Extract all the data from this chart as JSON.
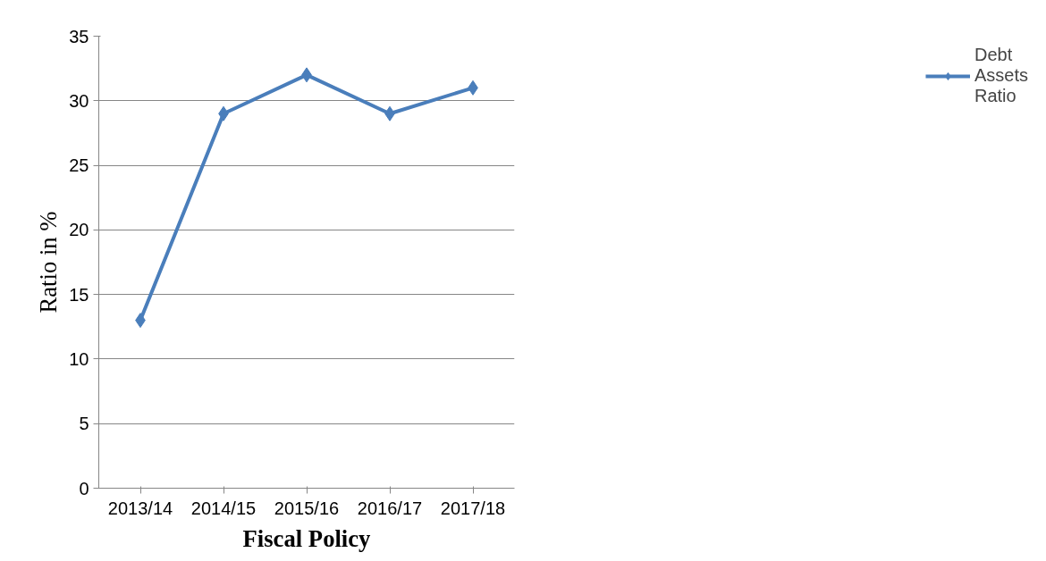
{
  "chart_data": {
    "type": "line",
    "xlabel": "Fiscal Policy",
    "ylabel": "Ratio in %",
    "categories": [
      "2013/14",
      "2014/15",
      "2015/16",
      "2016/17",
      "2017/18"
    ],
    "series": [
      {
        "name": "Debt\nAssets\nRatio",
        "color": "#4a7ebb",
        "values": [
          13,
          29,
          32,
          29,
          31
        ]
      }
    ],
    "ylim": [
      0,
      35
    ],
    "yticks": [
      0,
      5,
      10,
      15,
      20,
      25,
      30,
      35
    ],
    "grid": "y",
    "legend": "right",
    "marker": "diamond",
    "line_style": "solid"
  }
}
